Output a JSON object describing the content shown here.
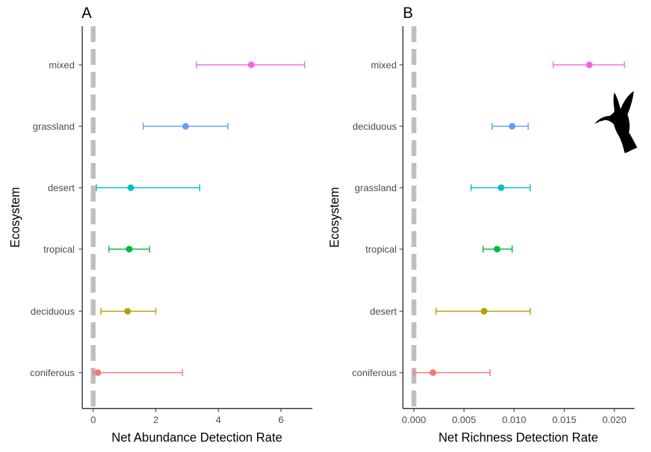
{
  "chart_data": [
    {
      "panel": "A",
      "type": "scatter",
      "style": "point-with-horizontal-errorbars",
      "xlabel": "Net Abundance Detection Rate",
      "ylabel": "Ecosystem",
      "xlim": [
        -0.35,
        7.0
      ],
      "xticks": [
        0,
        2,
        4,
        6
      ],
      "xtick_labels": [
        "0",
        "2",
        "4",
        "6"
      ],
      "reference_line": {
        "x": 0,
        "style": "dashed",
        "color": "#bebebe"
      },
      "grid": false,
      "legend": "none",
      "categories": [
        "mixed",
        "grassland",
        "desert",
        "tropical",
        "deciduous",
        "coniferous"
      ],
      "points": [
        {
          "category": "mixed",
          "value": 5.05,
          "lower": 3.3,
          "upper": 6.75,
          "color": "#f564e3"
        },
        {
          "category": "grassland",
          "value": 2.95,
          "lower": 1.6,
          "upper": 4.3,
          "color": "#619cff"
        },
        {
          "category": "desert",
          "value": 1.2,
          "lower": 0.1,
          "upper": 3.4,
          "color": "#00bfc4"
        },
        {
          "category": "tropical",
          "value": 1.15,
          "lower": 0.5,
          "upper": 1.8,
          "color": "#00ba38"
        },
        {
          "category": "deciduous",
          "value": 1.1,
          "lower": 0.25,
          "upper": 2.0,
          "color": "#b79f00"
        },
        {
          "category": "coniferous",
          "value": 0.15,
          "lower": 0.0,
          "upper": 2.85,
          "color": "#f8766d"
        }
      ]
    },
    {
      "panel": "B",
      "type": "scatter",
      "style": "point-with-horizontal-errorbars",
      "xlabel": "Net Richness Detection Rate",
      "ylabel": "Ecosystem",
      "xlim": [
        -0.0011,
        0.022
      ],
      "xticks": [
        0,
        0.005,
        0.01,
        0.015,
        0.02
      ],
      "xtick_labels": [
        "0.000",
        "0.005",
        "0.010",
        "0.015",
        "0.020"
      ],
      "reference_line": {
        "x": 0,
        "style": "dashed",
        "color": "#bebebe"
      },
      "grid": false,
      "legend": "none",
      "categories": [
        "mixed",
        "deciduous",
        "grassland",
        "tropical",
        "desert",
        "coniferous"
      ],
      "points": [
        {
          "category": "mixed",
          "value": 0.0175,
          "lower": 0.0139,
          "upper": 0.021,
          "color": "#f564e3"
        },
        {
          "category": "deciduous",
          "value": 0.0098,
          "lower": 0.0078,
          "upper": 0.0114,
          "color": "#619cff"
        },
        {
          "category": "grassland",
          "value": 0.0087,
          "lower": 0.0057,
          "upper": 0.0116,
          "color": "#00bfc4"
        },
        {
          "category": "tropical",
          "value": 0.0083,
          "lower": 0.0069,
          "upper": 0.0098,
          "color": "#00ba38"
        },
        {
          "category": "desert",
          "value": 0.007,
          "lower": 0.0022,
          "upper": 0.0116,
          "color": "#b79f00"
        },
        {
          "category": "coniferous",
          "value": 0.0019,
          "lower": 0.0,
          "upper": 0.0076,
          "color": "#f8766d"
        }
      ]
    }
  ],
  "decoration": {
    "icon": "hummingbird-silhouette-icon",
    "color": "#000000"
  }
}
